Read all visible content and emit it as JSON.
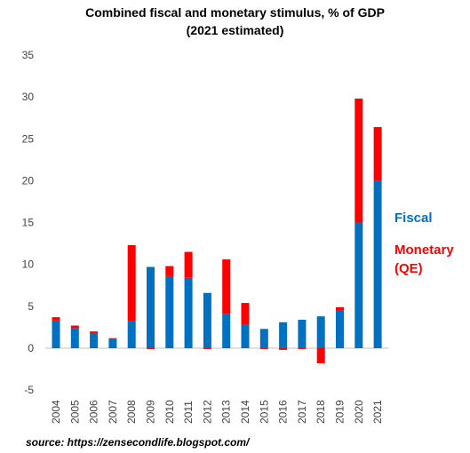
{
  "chart_data": {
    "type": "bar",
    "stacked": true,
    "title": [
      "Combined fiscal and monetary stimulus, % of GDP",
      "(2021 estimated)"
    ],
    "xlabel": "",
    "ylabel": "",
    "ylim": [
      -5,
      35
    ],
    "yticks": [
      -5,
      0,
      5,
      10,
      15,
      20,
      25,
      30,
      35
    ],
    "grid": false,
    "legend_placement": "right",
    "categories": [
      "2004",
      "2005",
      "2006",
      "2007",
      "2008",
      "2009",
      "2010",
      "2011",
      "2012",
      "2013",
      "2014",
      "2015",
      "2016",
      "2017",
      "2018",
      "2019",
      "2020",
      "2021"
    ],
    "series": [
      {
        "name": "Fiscal",
        "color": "#0070c0",
        "values": [
          3.3,
          2.4,
          1.8,
          1.1,
          3.2,
          9.7,
          8.6,
          8.4,
          6.6,
          4.1,
          2.8,
          2.3,
          3.1,
          3.4,
          3.8,
          4.5,
          15.0,
          20.0
        ]
      },
      {
        "name": "Monetary\n(QE)",
        "color": "#ff0000",
        "values": [
          0.4,
          0.3,
          0.2,
          0.1,
          9.1,
          -0.1,
          1.2,
          3.1,
          -0.1,
          6.5,
          2.6,
          -0.1,
          -0.2,
          -0.1,
          -1.8,
          0.4,
          14.8,
          6.4
        ]
      }
    ]
  },
  "legend": {
    "fiscal_label": "Fiscal",
    "monetary_label": "Monetary",
    "qe_label": "(QE)",
    "fiscal_color": "#0070c0",
    "monetary_color": "#ff0000"
  },
  "source": "source: https://zensecondlife.blogspot.com/"
}
